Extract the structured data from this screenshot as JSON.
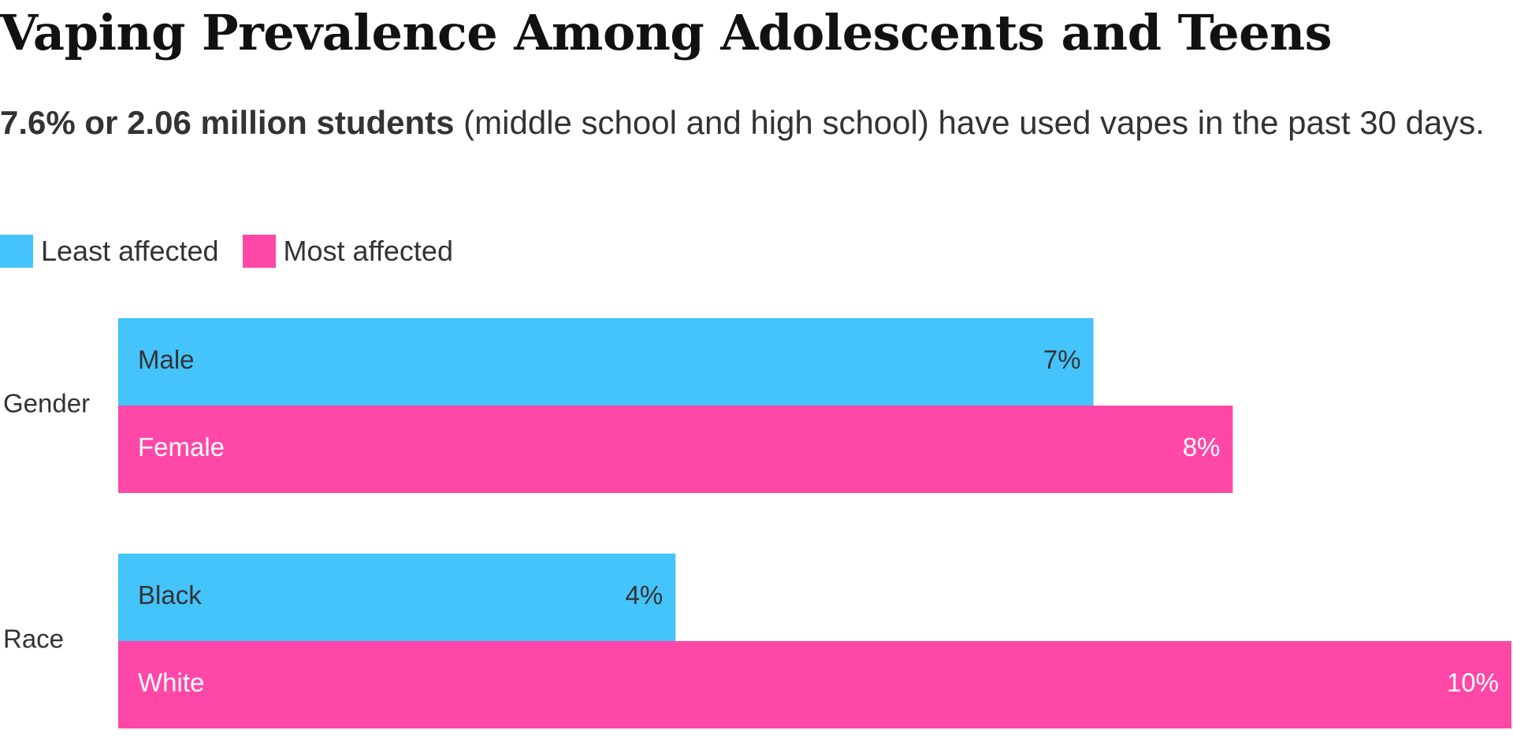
{
  "title": "Vaping Prevalence Among Adolescents and Teens",
  "subtitle": {
    "emphasis": "7.6% or 2.06 million students",
    "rest": " (middle school and high school) have used vapes in the past 30 days."
  },
  "legend": [
    {
      "label": "Least affected",
      "color": "#45c3fb"
    },
    {
      "label": "Most affected",
      "color": "#ff47a7"
    }
  ],
  "colors": {
    "least": "#45c3fb",
    "most": "#ff47a7",
    "dark_text": "#333333",
    "light_text": "#ffffff"
  },
  "chart_data": {
    "type": "bar",
    "orientation": "horizontal",
    "xlim": [
      0,
      10
    ],
    "grid": false,
    "legend_position": "top-left",
    "groups": [
      {
        "name": "Gender",
        "bars": [
          {
            "label": "Male",
            "value": 7,
            "value_label": "7%",
            "series": "Least affected"
          },
          {
            "label": "Female",
            "value": 8,
            "value_label": "8%",
            "series": "Most affected"
          }
        ]
      },
      {
        "name": "Race",
        "bars": [
          {
            "label": "Black",
            "value": 4,
            "value_label": "4%",
            "series": "Least affected"
          },
          {
            "label": "White",
            "value": 10,
            "value_label": "10%",
            "series": "Most affected"
          }
        ]
      }
    ]
  }
}
